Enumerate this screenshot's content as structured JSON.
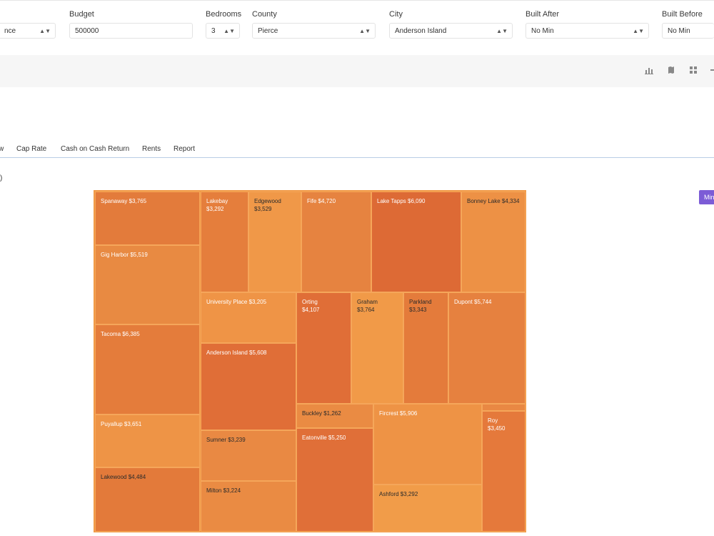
{
  "filters": [
    {
      "label": "",
      "value": "nce",
      "has_arrow": true
    },
    {
      "label": "Budget",
      "value": "500000",
      "has_arrow": false
    },
    {
      "label": "Bedrooms",
      "value": "3",
      "has_arrow": true
    },
    {
      "label": "County",
      "value": "Pierce",
      "has_arrow": true
    },
    {
      "label": "City",
      "value": "Anderson Island",
      "has_arrow": true
    },
    {
      "label": "Built After",
      "value": "No Min",
      "has_arrow": true
    },
    {
      "label": "Built Before",
      "value": "No Min",
      "has_arrow": false
    }
  ],
  "toolbar_icons": [
    "bar-chart-icon",
    "map-icon",
    "grid-icon",
    "more-icon"
  ],
  "tabs": [
    "w",
    "Cap Rate",
    "Cash on Cash Return",
    "Rents",
    "Report"
  ],
  "stub_text": ")",
  "min_button_label": "Min",
  "colors": {
    "accent_purple": "#7c5cd6",
    "tab_border": "#b9cde6"
  },
  "chart_data": {
    "type": "treemap",
    "cells": [
      {
        "label": "Spanaway $3,765",
        "color": "#e37b3b",
        "text": "light"
      },
      {
        "label": "Gig Harbor $5,519",
        "color": "#e88a42",
        "text": "light"
      },
      {
        "label": "Tacoma $6,385",
        "color": "#e47c3b",
        "text": "light"
      },
      {
        "label": "Puyallup $3,651",
        "color": "#ee9446",
        "text": "light"
      },
      {
        "label": "Lakewood $4,484",
        "color": "#e37a3a",
        "text": "dark"
      },
      {
        "label": "Lakebay $3,292",
        "color": "#e57e3c",
        "text": "light"
      },
      {
        "label": "Edgewood $3,529",
        "color": "#f09848",
        "text": "dark"
      },
      {
        "label": "Fife $4,720",
        "color": "#e68340",
        "text": "light"
      },
      {
        "label": "Lake Tapps $6,090",
        "color": "#dd6a35",
        "text": "light"
      },
      {
        "label": "Bonney Lake $4,334",
        "color": "#ed9145",
        "text": "dark"
      },
      {
        "label": "University Place $3,205",
        "color": "#ef9446",
        "text": "light"
      },
      {
        "label": "Anderson Island $5,608",
        "color": "#e06e37",
        "text": "light"
      },
      {
        "label": "Sumner $3,239",
        "color": "#e98943",
        "text": "dark"
      },
      {
        "label": "Milton $3,224",
        "color": "#ea8b43",
        "text": "dark"
      },
      {
        "label": "Orting $4,107",
        "color": "#e06e37",
        "text": "light"
      },
      {
        "label": "Graham $3,764",
        "color": "#f19a48",
        "text": "dark"
      },
      {
        "label": "Parkland $3,343",
        "color": "#e47b3b",
        "text": "dark"
      },
      {
        "label": "Dupont $5,744",
        "color": "#e6813f",
        "text": "light"
      },
      {
        "label": "Buckley $1,262",
        "color": "#ea8b43",
        "text": "dark"
      },
      {
        "label": "Eatonville $5,250",
        "color": "#e06f38",
        "text": "light"
      },
      {
        "label": "Fircrest $5,906",
        "color": "#ee9345",
        "text": "light"
      },
      {
        "label": "Ashford $3,292",
        "color": "#f19c49",
        "text": "dark"
      },
      {
        "label": "",
        "color": "#e98843",
        "text": "light"
      },
      {
        "label": "Roy $3,450",
        "color": "#e5793b",
        "text": "light"
      }
    ]
  }
}
